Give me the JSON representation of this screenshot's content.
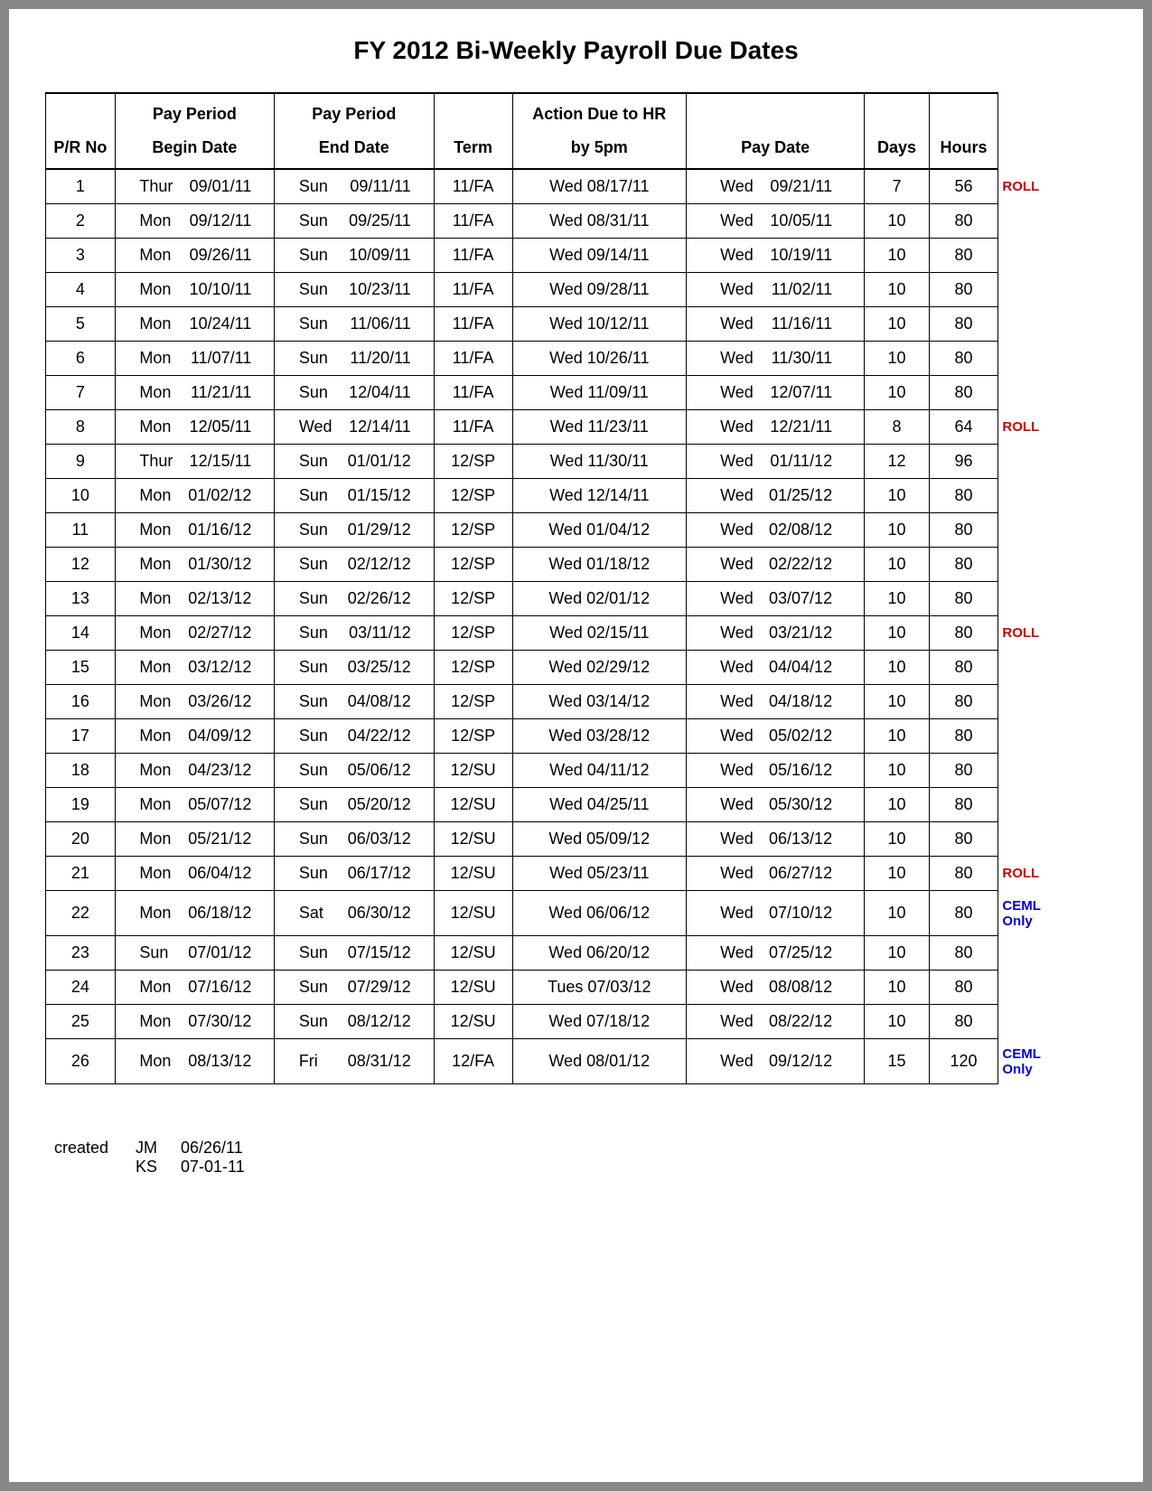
{
  "title": "FY 2012 Bi-Weekly Payroll Due Dates",
  "headers": {
    "row1": {
      "pr": "",
      "begin": "Pay Period",
      "end": "Pay Period",
      "term": "",
      "action": "Action Due to HR",
      "pay": "",
      "days": "",
      "hours": ""
    },
    "row2": {
      "pr": "P/R No",
      "begin": "Begin Date",
      "end": "End Date",
      "term": "Term",
      "action": "by 5pm",
      "pay": "Pay Date",
      "days": "Days",
      "hours": "Hours"
    }
  },
  "rows": [
    {
      "pr": "1",
      "begin_dow": "Thur",
      "begin_date": "09/01/11",
      "end_dow": "Sun",
      "end_date": "09/11/11",
      "term": "11/FA",
      "action_dow": "Wed",
      "action_date": "08/17/11",
      "pay_dow": "Wed",
      "pay_date": "09/21/11",
      "days": "7",
      "hours": "56",
      "note": "ROLL",
      "note_color": "red"
    },
    {
      "pr": "2",
      "begin_dow": "Mon",
      "begin_date": "09/12/11",
      "end_dow": "Sun",
      "end_date": "09/25/11",
      "term": "11/FA",
      "action_dow": "Wed",
      "action_date": "08/31/11",
      "pay_dow": "Wed",
      "pay_date": "10/05/11",
      "days": "10",
      "hours": "80",
      "note": "",
      "note_color": ""
    },
    {
      "pr": "3",
      "begin_dow": "Mon",
      "begin_date": "09/26/11",
      "end_dow": "Sun",
      "end_date": "10/09/11",
      "term": "11/FA",
      "action_dow": "Wed",
      "action_date": "09/14/11",
      "pay_dow": "Wed",
      "pay_date": "10/19/11",
      "days": "10",
      "hours": "80",
      "note": "",
      "note_color": ""
    },
    {
      "pr": "4",
      "begin_dow": "Mon",
      "begin_date": "10/10/11",
      "end_dow": "Sun",
      "end_date": "10/23/11",
      "term": "11/FA",
      "action_dow": "Wed",
      "action_date": "09/28/11",
      "pay_dow": "Wed",
      "pay_date": "11/02/11",
      "days": "10",
      "hours": "80",
      "note": "",
      "note_color": ""
    },
    {
      "pr": "5",
      "begin_dow": "Mon",
      "begin_date": "10/24/11",
      "end_dow": "Sun",
      "end_date": "11/06/11",
      "term": "11/FA",
      "action_dow": "Wed",
      "action_date": "10/12/11",
      "pay_dow": "Wed",
      "pay_date": "11/16/11",
      "days": "10",
      "hours": "80",
      "note": "",
      "note_color": ""
    },
    {
      "pr": "6",
      "begin_dow": "Mon",
      "begin_date": "11/07/11",
      "end_dow": "Sun",
      "end_date": "11/20/11",
      "term": "11/FA",
      "action_dow": "Wed",
      "action_date": "10/26/11",
      "pay_dow": "Wed",
      "pay_date": "11/30/11",
      "days": "10",
      "hours": "80",
      "note": "",
      "note_color": ""
    },
    {
      "pr": "7",
      "begin_dow": "Mon",
      "begin_date": "11/21/11",
      "end_dow": "Sun",
      "end_date": "12/04/11",
      "term": "11/FA",
      "action_dow": "Wed",
      "action_date": "11/09/11",
      "pay_dow": "Wed",
      "pay_date": "12/07/11",
      "days": "10",
      "hours": "80",
      "note": "",
      "note_color": ""
    },
    {
      "pr": "8",
      "begin_dow": "Mon",
      "begin_date": "12/05/11",
      "end_dow": "Wed",
      "end_date": "12/14/11",
      "term": "11/FA",
      "action_dow": "Wed",
      "action_date": "11/23/11",
      "pay_dow": "Wed",
      "pay_date": "12/21/11",
      "days": "8",
      "hours": "64",
      "note": "ROLL",
      "note_color": "red"
    },
    {
      "pr": "9",
      "begin_dow": "Thur",
      "begin_date": "12/15/11",
      "end_dow": "Sun",
      "end_date": "01/01/12",
      "term": "12/SP",
      "action_dow": "Wed",
      "action_date": "11/30/11",
      "pay_dow": "Wed",
      "pay_date": "01/11/12",
      "days": "12",
      "hours": "96",
      "note": "",
      "note_color": ""
    },
    {
      "pr": "10",
      "begin_dow": "Mon",
      "begin_date": "01/02/12",
      "end_dow": "Sun",
      "end_date": "01/15/12",
      "term": "12/SP",
      "action_dow": "Wed",
      "action_date": "12/14/11",
      "pay_dow": "Wed",
      "pay_date": "01/25/12",
      "days": "10",
      "hours": "80",
      "note": "",
      "note_color": ""
    },
    {
      "pr": "11",
      "begin_dow": "Mon",
      "begin_date": "01/16/12",
      "end_dow": "Sun",
      "end_date": "01/29/12",
      "term": "12/SP",
      "action_dow": "Wed",
      "action_date": "01/04/12",
      "pay_dow": "Wed",
      "pay_date": "02/08/12",
      "days": "10",
      "hours": "80",
      "note": "",
      "note_color": ""
    },
    {
      "pr": "12",
      "begin_dow": "Mon",
      "begin_date": "01/30/12",
      "end_dow": "Sun",
      "end_date": "02/12/12",
      "term": "12/SP",
      "action_dow": "Wed",
      "action_date": "01/18/12",
      "pay_dow": "Wed",
      "pay_date": "02/22/12",
      "days": "10",
      "hours": "80",
      "note": "",
      "note_color": ""
    },
    {
      "pr": "13",
      "begin_dow": "Mon",
      "begin_date": "02/13/12",
      "end_dow": "Sun",
      "end_date": "02/26/12",
      "term": "12/SP",
      "action_dow": "Wed",
      "action_date": "02/01/12",
      "pay_dow": "Wed",
      "pay_date": "03/07/12",
      "days": "10",
      "hours": "80",
      "note": "",
      "note_color": ""
    },
    {
      "pr": "14",
      "begin_dow": "Mon",
      "begin_date": "02/27/12",
      "end_dow": "Sun",
      "end_date": "03/11/12",
      "term": "12/SP",
      "action_dow": "Wed",
      "action_date": "02/15/11",
      "pay_dow": "Wed",
      "pay_date": "03/21/12",
      "days": "10",
      "hours": "80",
      "note": "ROLL",
      "note_color": "red"
    },
    {
      "pr": "15",
      "begin_dow": "Mon",
      "begin_date": "03/12/12",
      "end_dow": "Sun",
      "end_date": "03/25/12",
      "term": "12/SP",
      "action_dow": "Wed",
      "action_date": "02/29/12",
      "pay_dow": "Wed",
      "pay_date": "04/04/12",
      "days": "10",
      "hours": "80",
      "note": "",
      "note_color": ""
    },
    {
      "pr": "16",
      "begin_dow": "Mon",
      "begin_date": "03/26/12",
      "end_dow": "Sun",
      "end_date": "04/08/12",
      "term": "12/SP",
      "action_dow": "Wed",
      "action_date": "03/14/12",
      "pay_dow": "Wed",
      "pay_date": "04/18/12",
      "days": "10",
      "hours": "80",
      "note": "",
      "note_color": ""
    },
    {
      "pr": "17",
      "begin_dow": "Mon",
      "begin_date": "04/09/12",
      "end_dow": "Sun",
      "end_date": "04/22/12",
      "term": "12/SP",
      "action_dow": "Wed",
      "action_date": "03/28/12",
      "pay_dow": "Wed",
      "pay_date": "05/02/12",
      "days": "10",
      "hours": "80",
      "note": "",
      "note_color": ""
    },
    {
      "pr": "18",
      "begin_dow": "Mon",
      "begin_date": "04/23/12",
      "end_dow": "Sun",
      "end_date": "05/06/12",
      "term": "12/SU",
      "action_dow": "Wed",
      "action_date": "04/11/12",
      "pay_dow": "Wed",
      "pay_date": "05/16/12",
      "days": "10",
      "hours": "80",
      "note": "",
      "note_color": ""
    },
    {
      "pr": "19",
      "begin_dow": "Mon",
      "begin_date": "05/07/12",
      "end_dow": "Sun",
      "end_date": "05/20/12",
      "term": "12/SU",
      "action_dow": "Wed",
      "action_date": "04/25/11",
      "pay_dow": "Wed",
      "pay_date": "05/30/12",
      "days": "10",
      "hours": "80",
      "note": "",
      "note_color": ""
    },
    {
      "pr": "20",
      "begin_dow": "Mon",
      "begin_date": "05/21/12",
      "end_dow": "Sun",
      "end_date": "06/03/12",
      "term": "12/SU",
      "action_dow": "Wed",
      "action_date": "05/09/12",
      "pay_dow": "Wed",
      "pay_date": "06/13/12",
      "days": "10",
      "hours": "80",
      "note": "",
      "note_color": ""
    },
    {
      "pr": "21",
      "begin_dow": "Mon",
      "begin_date": "06/04/12",
      "end_dow": "Sun",
      "end_date": "06/17/12",
      "term": "12/SU",
      "action_dow": "Wed",
      "action_date": "05/23/11",
      "pay_dow": "Wed",
      "pay_date": "06/27/12",
      "days": "10",
      "hours": "80",
      "note": "ROLL",
      "note_color": "red"
    },
    {
      "pr": "22",
      "begin_dow": "Mon",
      "begin_date": "06/18/12",
      "end_dow": "Sat",
      "end_date": "06/30/12",
      "term": "12/SU",
      "action_dow": "Wed",
      "action_date": "06/06/12",
      "pay_dow": "Wed",
      "pay_date": "07/10/12",
      "days": "10",
      "hours": "80",
      "note": "CEML Only",
      "note_color": "blue"
    },
    {
      "pr": "23",
      "begin_dow": "Sun",
      "begin_date": "07/01/12",
      "end_dow": "Sun",
      "end_date": "07/15/12",
      "term": "12/SU",
      "action_dow": "Wed",
      "action_date": "06/20/12",
      "pay_dow": "Wed",
      "pay_date": "07/25/12",
      "days": "10",
      "hours": "80",
      "note": "",
      "note_color": ""
    },
    {
      "pr": "24",
      "begin_dow": "Mon",
      "begin_date": "07/16/12",
      "end_dow": "Sun",
      "end_date": "07/29/12",
      "term": "12/SU",
      "action_dow": "Tues",
      "action_date": "07/03/12",
      "pay_dow": "Wed",
      "pay_date": "08/08/12",
      "days": "10",
      "hours": "80",
      "note": "",
      "note_color": ""
    },
    {
      "pr": "25",
      "begin_dow": "Mon",
      "begin_date": "07/30/12",
      "end_dow": "Sun",
      "end_date": "08/12/12",
      "term": "12/SU",
      "action_dow": "Wed",
      "action_date": "07/18/12",
      "pay_dow": "Wed",
      "pay_date": "08/22/12",
      "days": "10",
      "hours": "80",
      "note": "",
      "note_color": ""
    },
    {
      "pr": "26",
      "begin_dow": "Mon",
      "begin_date": "08/13/12",
      "end_dow": "Fri",
      "end_date": "08/31/12",
      "term": "12/FA",
      "action_dow": "Wed",
      "action_date": "08/01/12",
      "pay_dow": "Wed",
      "pay_date": "09/12/12",
      "days": "15",
      "hours": "120",
      "note": "CEML Only",
      "note_color": "blue"
    }
  ],
  "footer": {
    "label": "created",
    "lines": [
      {
        "init": "JM",
        "date": "06/26/11"
      },
      {
        "init": "KS",
        "date": "07-01-11"
      }
    ]
  }
}
